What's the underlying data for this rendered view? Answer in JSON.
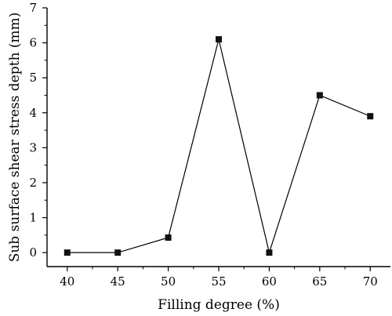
{
  "chart_data": {
    "type": "line",
    "xlabel": "Filling degree (%)",
    "ylabel": "Sub surface shear stress depth (mm)",
    "x": [
      40,
      45,
      50,
      55,
      60,
      65,
      70
    ],
    "series": [
      {
        "values": [
          0,
          0,
          0.43,
          6.1,
          0,
          4.5,
          3.9
        ]
      }
    ],
    "xlim": [
      38,
      72
    ],
    "ylim": [
      -0.4,
      7
    ],
    "xticks": [
      "40",
      "45",
      "50",
      "55",
      "60",
      "65",
      "70"
    ],
    "yticks": [
      "0",
      "1",
      "2",
      "3",
      "4",
      "5",
      "6",
      "7"
    ],
    "marker": "square",
    "line_color": "#000000",
    "grid": false
  }
}
